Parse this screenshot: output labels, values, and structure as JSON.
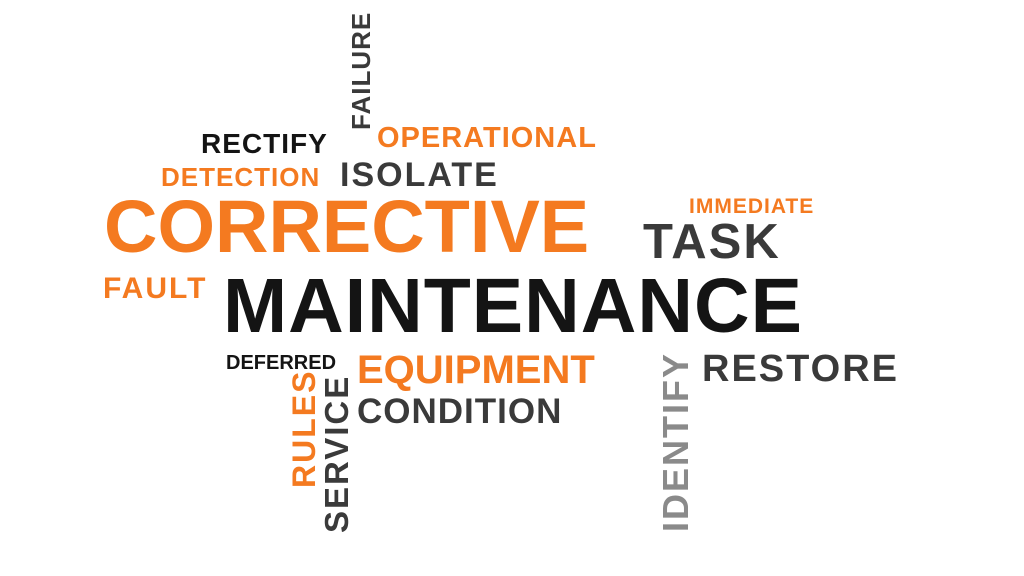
{
  "words": {
    "failure": "FAILURE",
    "rectify": "RECTIFY",
    "operational": "OPERATIONAL",
    "detection": "DETECTION",
    "isolate": "ISOLATE",
    "corrective": "CORRECTIVE",
    "immediate": "IMMEDIATE",
    "task": "TASK",
    "fault": "FAULT",
    "maintenance": "MAINTENANCE",
    "deferred": "DEFERRED",
    "equipment": "EQUIPMENT",
    "restore": "RESTORE",
    "identify": "IDENTIFY",
    "rules": "RULES",
    "service": "SERVICE",
    "condition": "CONDITION"
  },
  "colors": {
    "orange": "#f47a20",
    "black": "#141414",
    "dark_gray": "#3a3a3a",
    "light_gray": "#8a8a8a",
    "background": "#ffffff"
  }
}
